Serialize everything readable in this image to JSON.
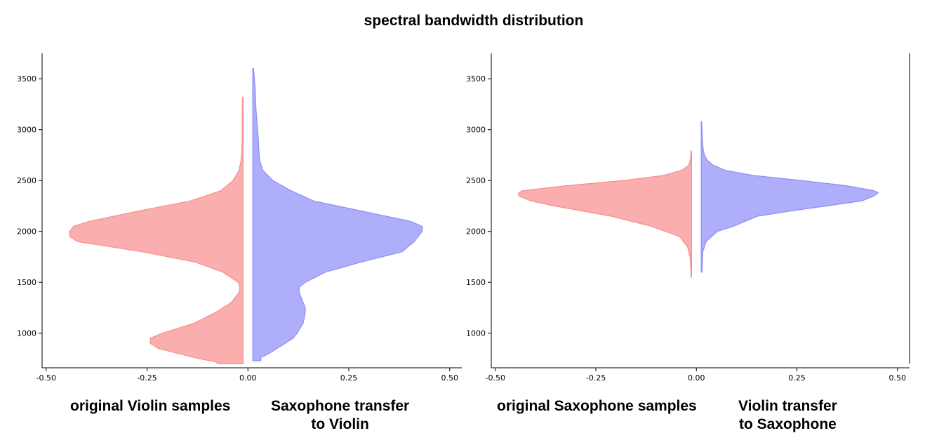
{
  "title": "spectral bandwidth distribution",
  "colors": {
    "left": "#fa8c8c",
    "right": "#8c8cfa",
    "left_alpha": 0.7,
    "right_alpha": 0.7
  },
  "chart_data": [
    {
      "type": "violin",
      "xlim": [
        -0.51,
        0.53
      ],
      "ylim": [
        660,
        3750
      ],
      "x_ticks": [
        "-0.50",
        "-0.25",
        "0.00",
        "0.25",
        "0.50"
      ],
      "x_tick_values": [
        -0.5,
        -0.25,
        0,
        0.25,
        0.5
      ],
      "y_ticks": [
        "1000",
        "1500",
        "2000",
        "2500",
        "3000",
        "3500"
      ],
      "y_tick_values": [
        1000,
        1500,
        2000,
        2500,
        3000,
        3500
      ],
      "spines": "left-bottom",
      "captions": {
        "left": "original Violin samples",
        "right_line1": "Saxophone transfer",
        "right_line2": "to Violin"
      },
      "series": [
        {
          "side": "left",
          "y": [
            700,
            720,
            750,
            800,
            850,
            900,
            950,
            1000,
            1100,
            1200,
            1300,
            1400,
            1450,
            1500,
            1600,
            1700,
            1800,
            1900,
            1950,
            2000,
            2050,
            2100,
            2200,
            2300,
            2400,
            2500,
            2600,
            2700,
            2800,
            2900,
            3000,
            3100,
            3200,
            3320
          ],
          "width": [
            0.06,
            0.07,
            0.11,
            0.16,
            0.21,
            0.23,
            0.23,
            0.2,
            0.12,
            0.07,
            0.03,
            0.01,
            0.008,
            0.012,
            0.05,
            0.12,
            0.25,
            0.41,
            0.43,
            0.43,
            0.42,
            0.38,
            0.26,
            0.13,
            0.055,
            0.025,
            0.01,
            0.005,
            0.003,
            0.002,
            0.002,
            0.002,
            0.002,
            0.001
          ]
        },
        {
          "side": "right",
          "y": [
            730,
            760,
            800,
            850,
            900,
            950,
            1000,
            1100,
            1200,
            1250,
            1300,
            1400,
            1450,
            1500,
            1600,
            1700,
            1800,
            1900,
            2000,
            2050,
            2100,
            2200,
            2300,
            2400,
            2500,
            2600,
            2700,
            2800,
            2900,
            3000,
            3100,
            3200,
            3400,
            3600
          ],
          "width": [
            0.02,
            0.02,
            0.04,
            0.06,
            0.08,
            0.1,
            0.11,
            0.125,
            0.13,
            0.13,
            0.125,
            0.115,
            0.115,
            0.13,
            0.18,
            0.27,
            0.37,
            0.4,
            0.42,
            0.42,
            0.39,
            0.27,
            0.15,
            0.095,
            0.05,
            0.025,
            0.017,
            0.015,
            0.014,
            0.012,
            0.01,
            0.008,
            0.006,
            0.002
          ]
        }
      ]
    },
    {
      "type": "violin",
      "xlim": [
        -0.51,
        0.53
      ],
      "ylim": [
        660,
        3750
      ],
      "x_ticks": [
        "-0.50",
        "-0.25",
        "0.00",
        "0.25",
        "0.50"
      ],
      "x_tick_values": [
        -0.5,
        -0.25,
        0,
        0.25,
        0.5
      ],
      "y_ticks": [
        "1000",
        "1500",
        "2000",
        "2500",
        "3000",
        "3500"
      ],
      "y_tick_values": [
        1000,
        1500,
        2000,
        2500,
        3000,
        3500
      ],
      "spines": "left-bottom-right-top",
      "captions": {
        "left": "original Saxophone samples",
        "right_line1": "Violin transfer",
        "right_line2": "to Saxophone"
      },
      "series": [
        {
          "side": "left",
          "y": [
            1550,
            1650,
            1750,
            1850,
            1950,
            2050,
            2150,
            2200,
            2250,
            2300,
            2350,
            2380,
            2400,
            2450,
            2500,
            2550,
            2600,
            2650,
            2700,
            2750,
            2790
          ],
          "width": [
            0.001,
            0.002,
            0.004,
            0.01,
            0.03,
            0.1,
            0.2,
            0.27,
            0.34,
            0.4,
            0.43,
            0.43,
            0.42,
            0.31,
            0.17,
            0.07,
            0.025,
            0.007,
            0.003,
            0.002,
            0.001
          ]
        },
        {
          "side": "right",
          "y": [
            1600,
            1700,
            1800,
            1900,
            2000,
            2050,
            2100,
            2150,
            2200,
            2250,
            2300,
            2350,
            2380,
            2400,
            2450,
            2500,
            2550,
            2600,
            2650,
            2700,
            2750,
            2800,
            2900,
            3000,
            3080
          ],
          "width": [
            0.002,
            0.003,
            0.004,
            0.012,
            0.04,
            0.08,
            0.11,
            0.14,
            0.22,
            0.31,
            0.4,
            0.43,
            0.44,
            0.43,
            0.36,
            0.25,
            0.13,
            0.06,
            0.03,
            0.015,
            0.008,
            0.005,
            0.003,
            0.002,
            0.001
          ]
        }
      ]
    }
  ]
}
